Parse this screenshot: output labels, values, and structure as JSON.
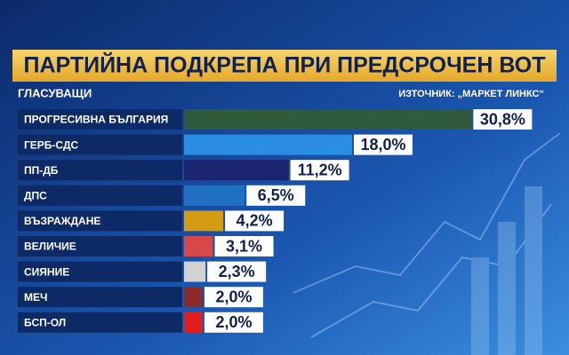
{
  "chart_data": {
    "type": "bar",
    "orientation": "horizontal",
    "title": "ПАРТИЙНА ПОДКРЕПА ПРИ ПРЕДСРОЧЕН ВОТ",
    "subtitle": "ГЛАСУВАЩИ",
    "source": "ИЗТОЧНИК: „МАРКЕТ ЛИНКС“",
    "categories": [
      "ПРОГРЕСИВНА БЪЛГАРИЯ",
      "ГЕРБ-СДС",
      "ПП-ДБ",
      "ДПС",
      "ВЪЗРАЖДАНЕ",
      "ВЕЛИЧИЕ",
      "СИЯНИЕ",
      "МЕЧ",
      "БСП-ОЛ"
    ],
    "values": [
      30.8,
      18.0,
      11.2,
      6.5,
      4.2,
      3.1,
      2.3,
      2.0,
      2.0
    ],
    "value_labels": [
      "30,8%",
      "18,0%",
      "11,2%",
      "6,5%",
      "4,2%",
      "3,1%",
      "2,3%",
      "2,0%",
      "2,0%"
    ],
    "colors": [
      "#2f5a3c",
      "#2a8fe2",
      "#1b2470",
      "#1f6fc2",
      "#d49c12",
      "#d84848",
      "#d2d2d2",
      "#8c2a2a",
      "#e01e1e"
    ]
  }
}
